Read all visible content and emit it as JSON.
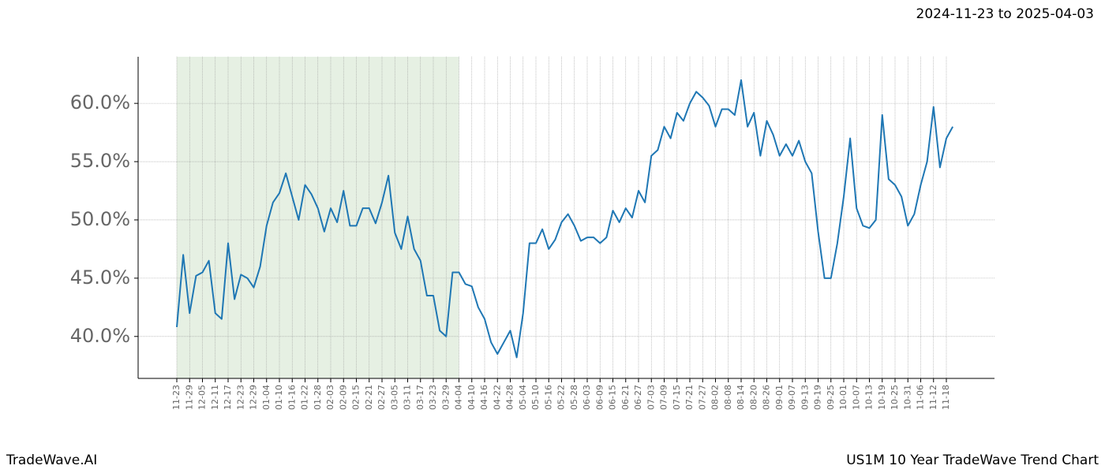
{
  "chart_data": {
    "type": "line",
    "title": "2024-11-23 to 2025-04-03",
    "footer_left": "TradeWave.AI",
    "footer_right": "US1M 10 Year TradeWave Trend Chart",
    "categories": [
      "11-23",
      null,
      "11-29",
      null,
      "12-05",
      null,
      "12-11",
      null,
      "12-17",
      null,
      "12-23",
      null,
      "12-29",
      null,
      "01-04",
      null,
      "01-10",
      null,
      "01-16",
      null,
      "01-22",
      null,
      "01-28",
      null,
      "02-03",
      null,
      "02-09",
      null,
      "02-15",
      null,
      "02-21",
      null,
      "02-27",
      null,
      "03-05",
      null,
      "03-11",
      null,
      "03-17",
      null,
      "03-23",
      null,
      "03-29",
      null,
      "04-04",
      null,
      "04-10",
      null,
      "04-16",
      null,
      "04-22",
      null,
      "04-28",
      null,
      "05-04",
      null,
      "05-10",
      null,
      "05-16",
      null,
      "05-22",
      null,
      "05-28",
      null,
      "06-03",
      null,
      "06-09",
      null,
      "06-15",
      null,
      "06-21",
      null,
      "06-27",
      null,
      "07-03",
      null,
      "07-09",
      null,
      "07-15",
      null,
      "07-21",
      null,
      "07-27",
      null,
      "08-02",
      null,
      "08-08",
      null,
      "08-14",
      null,
      "08-20",
      null,
      "08-26",
      null,
      "09-01",
      null,
      "09-07",
      null,
      "09-13",
      null,
      "09-19",
      null,
      "09-25",
      null,
      "10-01",
      null,
      "10-07",
      null,
      "10-13",
      null,
      "10-19",
      null,
      "10-25",
      null,
      "10-31",
      null,
      "11-06",
      null,
      "11-12",
      null,
      "11-18",
      null
    ],
    "values": [
      40.8,
      47,
      42,
      45.2,
      45.5,
      46.5,
      42,
      41.5,
      48,
      43.2,
      45.3,
      45,
      44.2,
      46,
      49.5,
      51.5,
      52.3,
      54,
      52,
      50,
      53,
      52.2,
      51,
      49,
      51,
      49.8,
      52.5,
      49.5,
      49.5,
      51,
      51,
      49.7,
      51.5,
      53.8,
      48.9,
      47.5,
      50.3,
      47.5,
      46.5,
      43.5,
      43.5,
      40.5,
      40,
      45.5,
      45.5,
      44.5,
      44.3,
      42.5,
      41.5,
      39.5,
      38.5,
      39.5,
      40.5,
      38.2,
      42,
      48,
      48,
      49.2,
      47.5,
      48.3,
      49.8,
      50.5,
      49.5,
      48.2,
      48.5,
      48.5,
      48,
      48.5,
      50.8,
      49.8,
      51,
      50.2,
      52.5,
      51.5,
      55.5,
      56,
      58,
      57,
      59.2,
      58.5,
      60,
      61,
      60.5,
      59.8,
      58,
      59.5,
      59.5,
      59,
      62,
      58,
      59.2,
      55.5,
      58.5,
      57.3,
      55.5,
      56.5,
      55.5,
      56.8,
      55,
      54,
      49,
      45,
      45,
      48,
      52,
      57,
      51,
      49.5,
      49.3,
      50,
      59,
      53.5,
      53,
      52,
      49.5,
      50.5,
      53,
      55,
      59.7,
      54.5,
      57,
      58
    ],
    "color": "#1f77b4",
    "highlight": [
      "11-23",
      "04-04"
    ],
    "highlight_color": "#e6f0e3",
    "ylim": [
      36.4,
      64.0
    ],
    "yticks": [
      {
        "value": 40,
        "label": "40.0%"
      },
      {
        "value": 45,
        "label": "45.0%"
      },
      {
        "value": 50,
        "label": "50.0%"
      },
      {
        "value": 55,
        "label": "55.0%"
      },
      {
        "value": 60,
        "label": "60.0%"
      }
    ],
    "grid": true
  }
}
